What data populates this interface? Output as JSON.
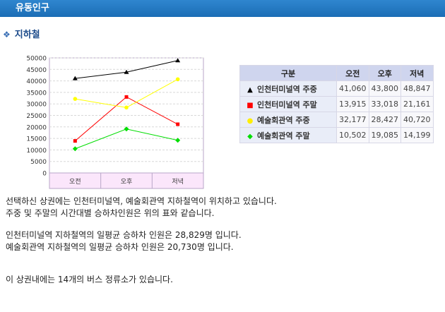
{
  "header": {
    "title": "유동인구"
  },
  "section": {
    "title": "지하철"
  },
  "chart_data": {
    "type": "line",
    "categories": [
      "오전",
      "오후",
      "저녁"
    ],
    "ylim": [
      0,
      50000
    ],
    "yticks": [
      0,
      5000,
      10000,
      15000,
      20000,
      25000,
      30000,
      35000,
      40000,
      45000,
      50000
    ],
    "grid": true,
    "series": [
      {
        "name": "인천터미널역 주중",
        "values": [
          41060,
          43800,
          48847
        ],
        "color": "#000000",
        "marker": "▲"
      },
      {
        "name": "인천터미널역 주말",
        "values": [
          13915,
          33018,
          21161
        ],
        "color": "#ff0000",
        "marker": "■"
      },
      {
        "name": "예술회관역 주중",
        "values": [
          32177,
          28427,
          40720
        ],
        "color": "#ffff00",
        "marker": "●"
      },
      {
        "name": "예술회관역 주말",
        "values": [
          10502,
          19085,
          14199
        ],
        "color": "#00dd00",
        "marker": "◆"
      }
    ]
  },
  "table": {
    "headers": [
      "구분",
      "오전",
      "오후",
      "저녁"
    ],
    "rows": [
      {
        "label": "인천터미널역 주중",
        "values": [
          "41,060",
          "43,800",
          "48,847"
        ]
      },
      {
        "label": "인천터미널역 주말",
        "values": [
          "13,915",
          "33,018",
          "21,161"
        ]
      },
      {
        "label": "예술회관역 주중",
        "values": [
          "32,177",
          "28,427",
          "40,720"
        ]
      },
      {
        "label": "예술회관역 주말",
        "values": [
          "10,502",
          "19,085",
          "14,199"
        ]
      }
    ]
  },
  "paragraphs": [
    "선택하신 상권에는 인천터미널역, 예술회관역 지하철역이 위치하고 있습니다.",
    "주중 및 주말의 시간대별 승하차인원은 위의 표와 같습니다.",
    "인천터미널역 지하철역의 일평균 승하차 인원은 28,829명 입니다.",
    "예술회관역 지하철역의 일평균 승하차 인원은 20,730명 입니다.",
    "이 상권내에는 14개의 버스 정류소가 있습니다."
  ]
}
